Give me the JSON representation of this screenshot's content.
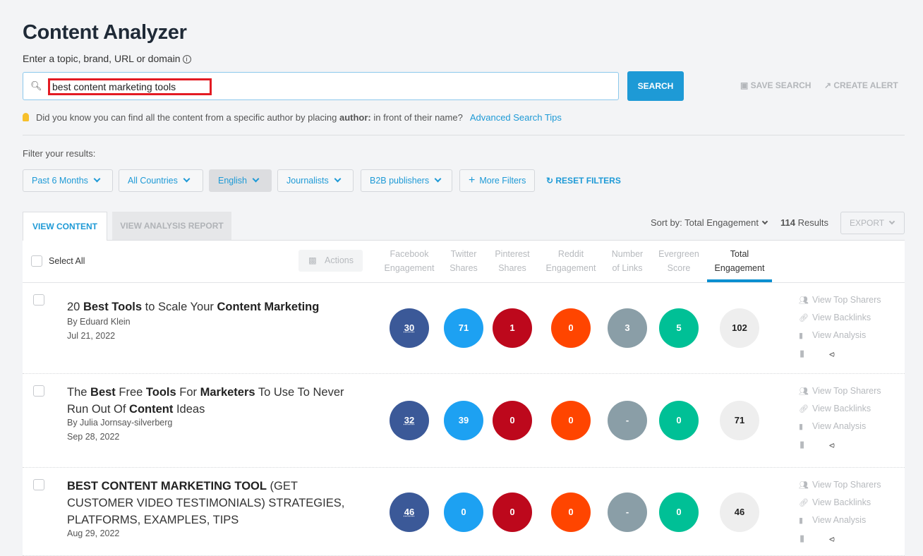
{
  "page": {
    "title": "Content Analyzer",
    "input_label": "Enter a topic, brand, URL or domain"
  },
  "search": {
    "value": "best content marketing tools",
    "button": "SEARCH",
    "save": "SAVE SEARCH",
    "alert": "CREATE ALERT"
  },
  "tip": {
    "pre": "Did you know you can find all the content from a specific author by placing ",
    "bold": "author:",
    "post": " in front of their name?",
    "link": "Advanced Search Tips"
  },
  "filters": {
    "label": "Filter your results:",
    "items": [
      "Past 6 Months",
      "All Countries",
      "English",
      "Journalists",
      "B2B publishers"
    ],
    "selected": "English",
    "more": "More Filters",
    "reset": "RESET FILTERS"
  },
  "tabs": {
    "content": "VIEW CONTENT",
    "report": "VIEW ANALYSIS REPORT"
  },
  "toolbar": {
    "sort": "Sort by: Total Engagement",
    "results_count": "114",
    "results_label": "Results",
    "export": "EXPORT"
  },
  "table": {
    "select_all": "Select All",
    "actions": "Actions",
    "columns": [
      [
        "Facebook",
        "Engagement"
      ],
      [
        "Twitter",
        "Shares"
      ],
      [
        "Pinterest",
        "Shares"
      ],
      [
        "Reddit",
        "Engagement"
      ],
      [
        "Number",
        "of Links"
      ],
      [
        "Evergreen",
        "Score"
      ],
      [
        "Total",
        "Engagement"
      ]
    ],
    "colors": [
      "#3b5998",
      "#1da1f2",
      "#bd081c",
      "#ff4500",
      "#8a9ea7",
      "#00c096",
      "#eeeeee"
    ],
    "row_actions": [
      "View Top Sharers",
      "View Backlinks",
      "View Analysis"
    ],
    "rows": [
      {
        "title": [
          [
            "20 ",
            0
          ],
          [
            "Best Tools",
            1
          ],
          [
            " to Scale Your ",
            0
          ],
          [
            "Content Marketing",
            1
          ]
        ],
        "author": "By  Eduard Klein",
        "date": "Jul 21, 2022",
        "values": [
          "30",
          "71",
          "1",
          "0",
          "3",
          "5",
          "102"
        ]
      },
      {
        "title": [
          [
            "The ",
            0
          ],
          [
            "Best",
            1
          ],
          [
            " Free ",
            0
          ],
          [
            "Tools",
            1
          ],
          [
            " For ",
            0
          ],
          [
            "Marketers",
            1
          ],
          [
            " To Use To Never Run Out Of ",
            0
          ],
          [
            "Content",
            1
          ],
          [
            " Ideas",
            0
          ]
        ],
        "author": "By  Julia Jornsay-silverberg",
        "date": "Sep 28, 2022",
        "values": [
          "32",
          "39",
          "0",
          "0",
          "-",
          "0",
          "71"
        ]
      },
      {
        "title": [
          [
            "BEST CONTENT MARKETING TOOL",
            1
          ],
          [
            " (GET CUSTOMER VIDEO TESTIMONIALS) STRATEGIES, PLATFORMS, EXAMPLES, TIPS",
            0
          ]
        ],
        "author": "",
        "date": "Aug 29, 2022",
        "values": [
          "46",
          "0",
          "0",
          "0",
          "-",
          "0",
          "46"
        ]
      }
    ]
  }
}
